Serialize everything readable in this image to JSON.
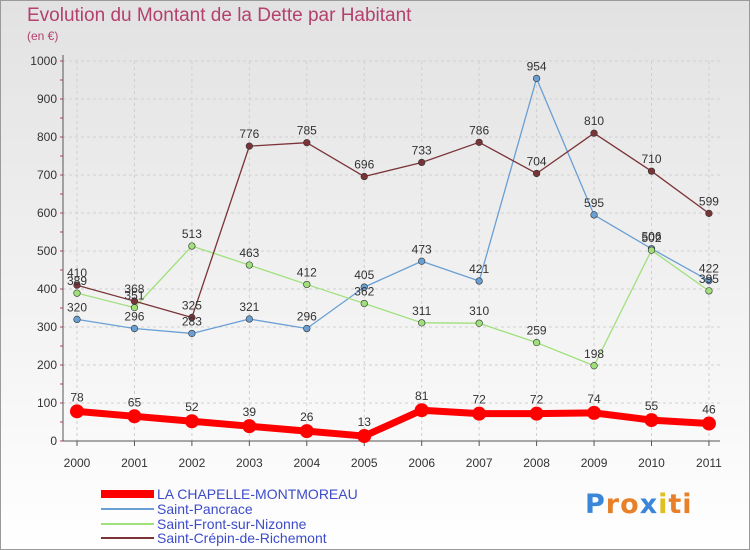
{
  "chart_data": {
    "type": "line",
    "title": "Evolution du Montant de la Dette par Habitant",
    "subtitle": "(en €)",
    "x": [
      "2000",
      "2001",
      "2002",
      "2003",
      "2004",
      "2005",
      "2006",
      "2007",
      "2008",
      "2009",
      "2010",
      "2011"
    ],
    "yticks": [
      "0",
      "100",
      "200",
      "300",
      "400",
      "500",
      "600",
      "700",
      "800",
      "900",
      "1000"
    ],
    "ylim": [
      0,
      1000
    ],
    "grid": true,
    "legend_position": "bottom-left",
    "series": [
      {
        "name": "LA CHAPELLE-MONTMOREAU",
        "color": "#ff0000",
        "values": [
          78,
          65,
          52,
          39,
          26,
          13,
          81,
          72,
          72,
          74,
          55,
          46
        ]
      },
      {
        "name": "Saint-Pancrace",
        "color": "#6a9fd4",
        "values": [
          320,
          296,
          283,
          321,
          296,
          405,
          473,
          421,
          954,
          595,
          506,
          422
        ]
      },
      {
        "name": "Saint-Front-sur-Nizonne",
        "color": "#9fe07a",
        "values": [
          389,
          351,
          513,
          463,
          412,
          362,
          311,
          310,
          259,
          198,
          502,
          395
        ]
      },
      {
        "name": "Saint-Crépin-de-Richemont",
        "color": "#7a3438",
        "values": [
          410,
          368,
          325,
          776,
          785,
          696,
          733,
          786,
          704,
          810,
          710,
          599
        ]
      }
    ]
  },
  "logo": {
    "letters": [
      "P",
      "r",
      "o",
      "x",
      "i",
      "t",
      "i"
    ],
    "colors": [
      "#3a86d8",
      "#e8802a",
      "#e8802a",
      "#3a86d8",
      "#e0c020",
      "#e8802a",
      "#e8802a"
    ]
  }
}
